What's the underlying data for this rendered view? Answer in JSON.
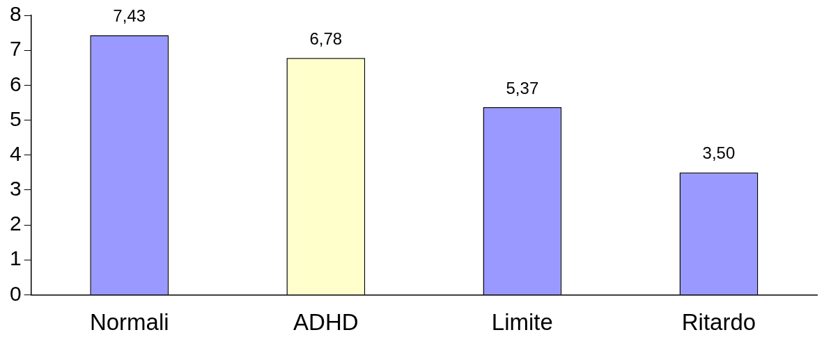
{
  "chart_data": {
    "type": "bar",
    "categories": [
      "Normali",
      "ADHD",
      "Limite",
      "Ritardo"
    ],
    "values": [
      7.43,
      6.78,
      5.37,
      3.5
    ],
    "colors": [
      "#9999ff",
      "#ffffcc",
      "#9999ff",
      "#9999ff"
    ],
    "value_labels": [
      "7,43",
      "6,78",
      "5,37",
      "3,50"
    ],
    "ylim": [
      0,
      8
    ],
    "yticks": [
      0,
      1,
      2,
      3,
      4,
      5,
      6,
      7,
      8
    ],
    "grid": false,
    "legend": false
  }
}
